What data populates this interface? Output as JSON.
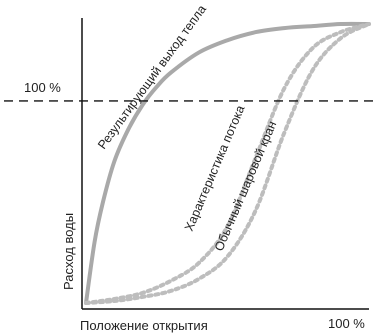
{
  "chart_data": {
    "type": "line",
    "xlabel": "Положение открытия",
    "ylabel": "Расход воды",
    "x_tick_label": "100 %",
    "y_ref_label": "100 %",
    "xlim": [
      0,
      100
    ],
    "ylim": [
      0,
      140
    ],
    "reference_line": {
      "y": 100,
      "style": "dashed"
    },
    "series": [
      {
        "name": "Результирующий выход тепла",
        "style": "solid",
        "color": "#a9a9a9",
        "x": [
          0,
          3,
          6,
          10,
          15,
          20,
          25,
          30,
          40,
          50,
          60,
          70,
          80,
          90,
          100
        ],
        "y": [
          0,
          30,
          50,
          70,
          86,
          98,
          107,
          114,
          124,
          130,
          134,
          136,
          137,
          138,
          138
        ]
      },
      {
        "name": "Характеристика потока",
        "style": "dotted",
        "color": "#bdbdbd",
        "x": [
          0,
          10,
          20,
          30,
          40,
          50,
          60,
          70,
          80,
          90,
          100
        ],
        "y": [
          0,
          2,
          5,
          11,
          20,
          38,
          72,
          106,
          126,
          134,
          138
        ]
      },
      {
        "name": "Обычный шаровой кран",
        "style": "dotted",
        "color": "#bdbdbd",
        "x": [
          0,
          10,
          20,
          30,
          40,
          50,
          60,
          70,
          80,
          90,
          100
        ],
        "y": [
          0,
          1,
          3,
          6,
          12,
          23,
          46,
          84,
          115,
          131,
          138
        ]
      }
    ],
    "grid": false,
    "legend": "none"
  }
}
